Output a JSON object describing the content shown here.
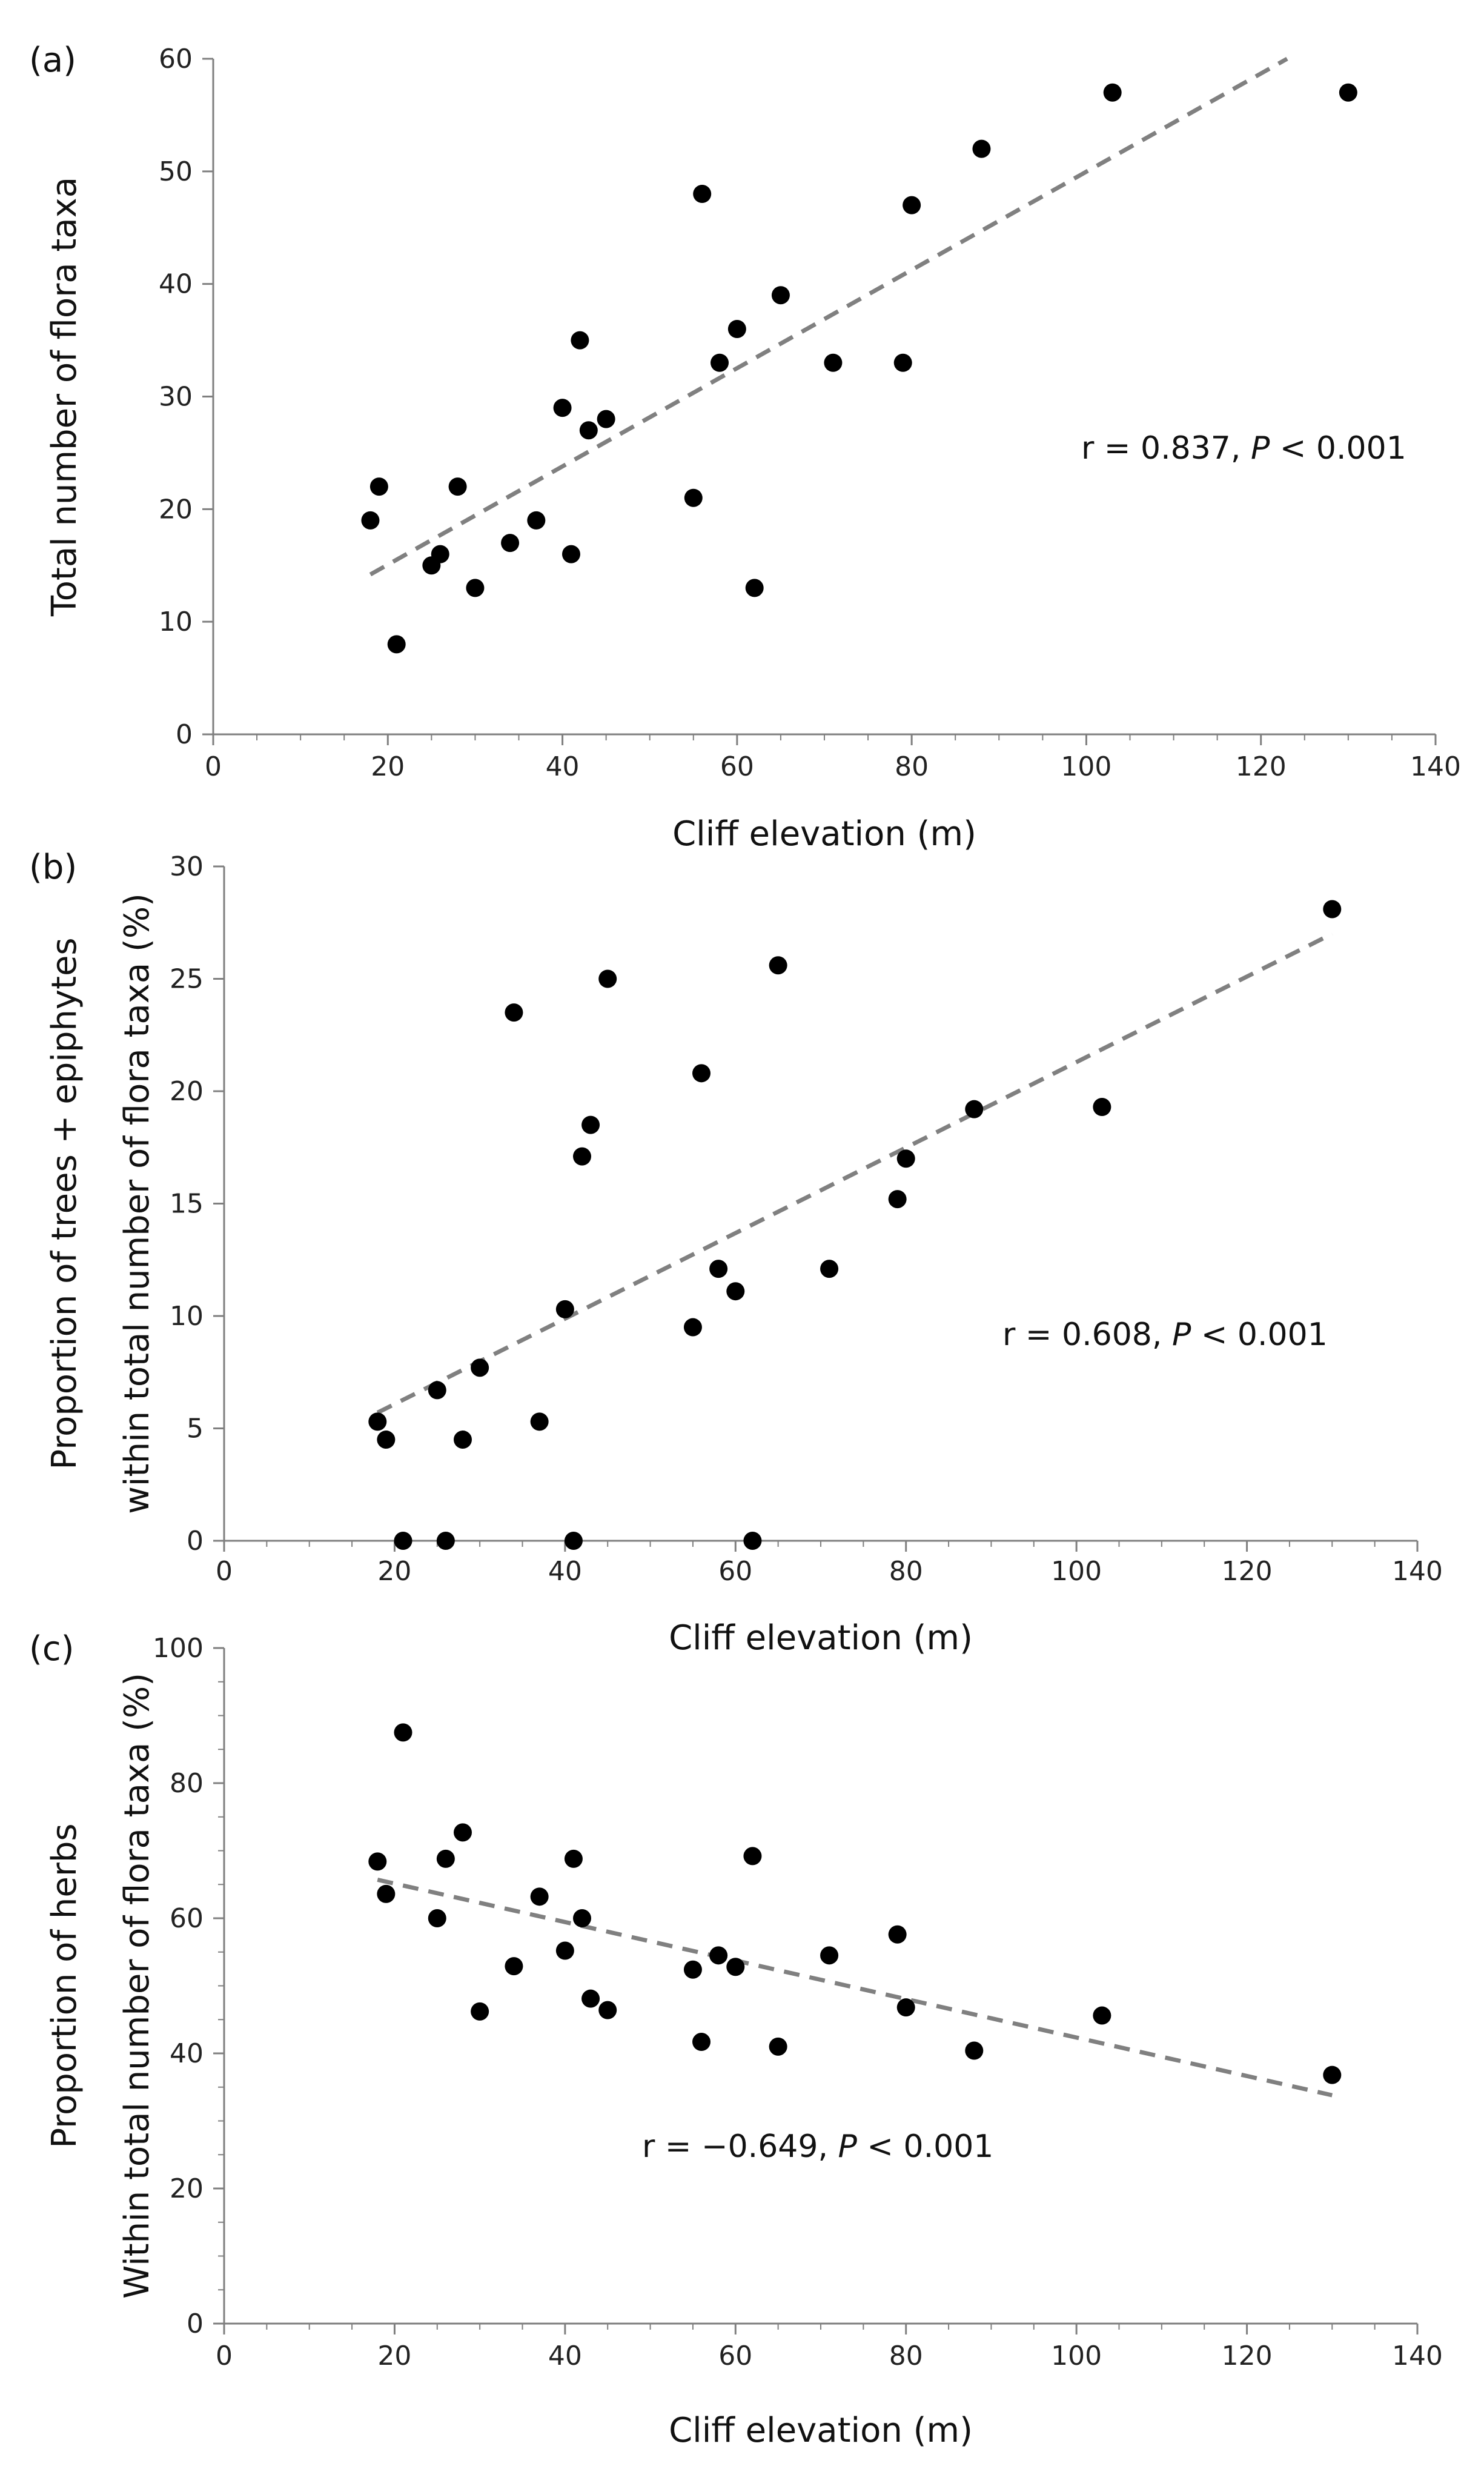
{
  "figure": {
    "panels_count": 3
  },
  "chart_data": [
    {
      "type": "scatter",
      "panel_label": "(a)",
      "xlabel": "Cliff elevation (m)",
      "ylabel": [
        "Total number of flora taxa"
      ],
      "xlim": [
        0,
        140
      ],
      "ylim": [
        0,
        60
      ],
      "xticks": [
        0,
        20,
        40,
        60,
        80,
        100,
        120,
        140
      ],
      "yticks": [
        0,
        10,
        20,
        30,
        40,
        50,
        60
      ],
      "annotation": {
        "prefix": "r = 0.837, ",
        "p": "P",
        "suffix": " < 0.001"
      },
      "trendline": {
        "style": "dashed",
        "color": "#808080",
        "x": [
          18,
          123
        ],
        "y": [
          14.2,
          60
        ]
      },
      "points": [
        {
          "x": 18,
          "y": 19
        },
        {
          "x": 19,
          "y": 22
        },
        {
          "x": 21,
          "y": 8
        },
        {
          "x": 25,
          "y": 15
        },
        {
          "x": 26,
          "y": 16
        },
        {
          "x": 28,
          "y": 22
        },
        {
          "x": 30,
          "y": 13
        },
        {
          "x": 34,
          "y": 17
        },
        {
          "x": 37,
          "y": 19
        },
        {
          "x": 40,
          "y": 29
        },
        {
          "x": 41,
          "y": 16
        },
        {
          "x": 42,
          "y": 35
        },
        {
          "x": 43,
          "y": 27
        },
        {
          "x": 45,
          "y": 28
        },
        {
          "x": 55,
          "y": 21
        },
        {
          "x": 56,
          "y": 48
        },
        {
          "x": 58,
          "y": 33
        },
        {
          "x": 60,
          "y": 36
        },
        {
          "x": 62,
          "y": 13
        },
        {
          "x": 65,
          "y": 39
        },
        {
          "x": 71,
          "y": 33
        },
        {
          "x": 79,
          "y": 33
        },
        {
          "x": 80,
          "y": 47
        },
        {
          "x": 88,
          "y": 52
        },
        {
          "x": 103,
          "y": 57
        },
        {
          "x": 130,
          "y": 57
        }
      ]
    },
    {
      "type": "scatter",
      "panel_label": "(b)",
      "xlabel": "Cliff elevation (m)",
      "ylabel": [
        "Proportion of trees + epiphytes",
        "within total number of flora taxa (%)"
      ],
      "xlim": [
        0,
        140
      ],
      "ylim": [
        0,
        30
      ],
      "xticks": [
        0,
        20,
        40,
        60,
        80,
        100,
        120,
        140
      ],
      "yticks": [
        0,
        5,
        10,
        15,
        20,
        25,
        30
      ],
      "annotation": {
        "prefix": "r = 0.608, ",
        "p": "P",
        "suffix": " < 0.001"
      },
      "trendline": {
        "style": "dashed",
        "color": "#808080",
        "x": [
          18,
          130
        ],
        "y": [
          5.7,
          27
        ]
      },
      "points": [
        {
          "x": 18,
          "y": 5.3
        },
        {
          "x": 19,
          "y": 4.5
        },
        {
          "x": 21,
          "y": 0
        },
        {
          "x": 25,
          "y": 6.7
        },
        {
          "x": 26,
          "y": 0
        },
        {
          "x": 28,
          "y": 4.5
        },
        {
          "x": 30,
          "y": 7.7
        },
        {
          "x": 34,
          "y": 23.5
        },
        {
          "x": 37,
          "y": 5.3
        },
        {
          "x": 40,
          "y": 10.3
        },
        {
          "x": 41,
          "y": 0
        },
        {
          "x": 42,
          "y": 17.1
        },
        {
          "x": 43,
          "y": 18.5
        },
        {
          "x": 45,
          "y": 25
        },
        {
          "x": 55,
          "y": 9.5
        },
        {
          "x": 56,
          "y": 20.8
        },
        {
          "x": 58,
          "y": 12.1
        },
        {
          "x": 60,
          "y": 11.1
        },
        {
          "x": 62,
          "y": 0
        },
        {
          "x": 65,
          "y": 25.6
        },
        {
          "x": 71,
          "y": 12.1
        },
        {
          "x": 79,
          "y": 15.2
        },
        {
          "x": 80,
          "y": 17
        },
        {
          "x": 88,
          "y": 19.2
        },
        {
          "x": 103,
          "y": 19.3
        },
        {
          "x": 130,
          "y": 28.1
        }
      ]
    },
    {
      "type": "scatter",
      "panel_label": "(c)",
      "xlabel": "Cliff elevation (m)",
      "ylabel": [
        "Proportion of herbs",
        "Within total number of flora taxa (%)"
      ],
      "xlim": [
        0,
        140
      ],
      "ylim": [
        0,
        100
      ],
      "xticks": [
        0,
        20,
        40,
        60,
        80,
        100,
        120,
        140
      ],
      "yticks": [
        0,
        20,
        40,
        60,
        80,
        100
      ],
      "annotation": {
        "prefix": "r = −0.649, ",
        "p": "P",
        "suffix": " < 0.001"
      },
      "trendline": {
        "style": "dashed",
        "color": "#808080",
        "x": [
          18,
          130
        ],
        "y": [
          65.7,
          33.8
        ]
      },
      "points": [
        {
          "x": 18,
          "y": 68.4
        },
        {
          "x": 19,
          "y": 63.6
        },
        {
          "x": 21,
          "y": 87.5
        },
        {
          "x": 25,
          "y": 60
        },
        {
          "x": 26,
          "y": 68.8
        },
        {
          "x": 28,
          "y": 72.7
        },
        {
          "x": 30,
          "y": 46.2
        },
        {
          "x": 34,
          "y": 52.9
        },
        {
          "x": 37,
          "y": 63.2
        },
        {
          "x": 40,
          "y": 55.2
        },
        {
          "x": 41,
          "y": 68.8
        },
        {
          "x": 42,
          "y": 60
        },
        {
          "x": 43,
          "y": 48.1
        },
        {
          "x": 45,
          "y": 46.4
        },
        {
          "x": 55,
          "y": 52.4
        },
        {
          "x": 56,
          "y": 41.7
        },
        {
          "x": 58,
          "y": 54.5
        },
        {
          "x": 60,
          "y": 52.8
        },
        {
          "x": 62,
          "y": 69.2
        },
        {
          "x": 65,
          "y": 41
        },
        {
          "x": 71,
          "y": 54.5
        },
        {
          "x": 79,
          "y": 57.6
        },
        {
          "x": 80,
          "y": 46.8
        },
        {
          "x": 88,
          "y": 40.4
        },
        {
          "x": 103,
          "y": 45.6
        },
        {
          "x": 130,
          "y": 36.8
        }
      ]
    }
  ]
}
